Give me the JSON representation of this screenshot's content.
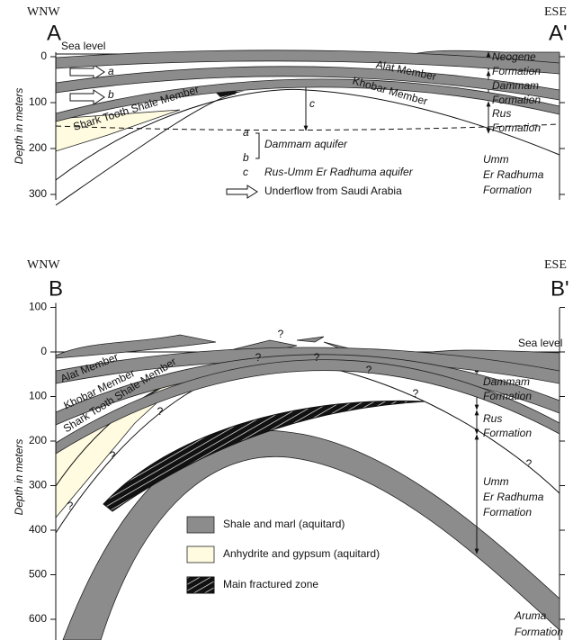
{
  "panel_a": {
    "direction_left": "WNW",
    "direction_right": "ESE",
    "label_left": "A",
    "label_right": "A'",
    "sea_level": "Sea level",
    "axis_label": "Depth in meters",
    "yticks": [
      0,
      100,
      200,
      300
    ],
    "arrow_a": "a",
    "arrow_b": "b",
    "arrow_c": "c",
    "members": {
      "alat": "Alat Member",
      "khobar": "Khobar Member",
      "shark_tooth": "Shark Tooth Shale Member"
    },
    "formations": {
      "neogene": [
        "Neogene",
        "Formation"
      ],
      "dammam": [
        "Dammam",
        "Formation"
      ],
      "rus": [
        "Rus",
        "Formation"
      ],
      "umm_er_radhuma": [
        "Umm",
        "Er Radhuma",
        "Formation"
      ]
    },
    "legend": {
      "a": "a",
      "b": "b",
      "dammam_aquifer": "Dammam aquifer",
      "c": "c",
      "rus_aquifer": "Rus-Umm Er Radhuma aquifer",
      "underflow": "Underflow from Saudi Arabia"
    }
  },
  "panel_b": {
    "direction_left": "WNW",
    "direction_right": "ESE",
    "label_left": "B",
    "label_right": "B'",
    "sea_level": "Sea level",
    "axis_label": "Depth in meters",
    "yticks": [
      {
        "value": -100,
        "label": "100"
      },
      0,
      100,
      200,
      300,
      400,
      500,
      600
    ],
    "members": {
      "alat": "Alat Member",
      "khobar": "Khobar Member",
      "shark_tooth": "Shark Tooth Shale Member"
    },
    "formations": {
      "dammam": [
        "Dammam",
        "Formation"
      ],
      "rus": [
        "Rus",
        "Formation"
      ],
      "umm_er_radhuma": [
        "Umm",
        "Er Radhuma",
        "Formation"
      ],
      "aruma": [
        "Aruma",
        "Formation"
      ]
    },
    "question_marks": [
      "?",
      "?",
      "?",
      "?",
      "?",
      "?",
      "?",
      "?",
      "?"
    ],
    "legend": {
      "shale": "Shale and marl (aquitard)",
      "anhydrite": "Anhydrite and gypsum (aquitard)",
      "fractured": "Main fractured zone"
    }
  }
}
